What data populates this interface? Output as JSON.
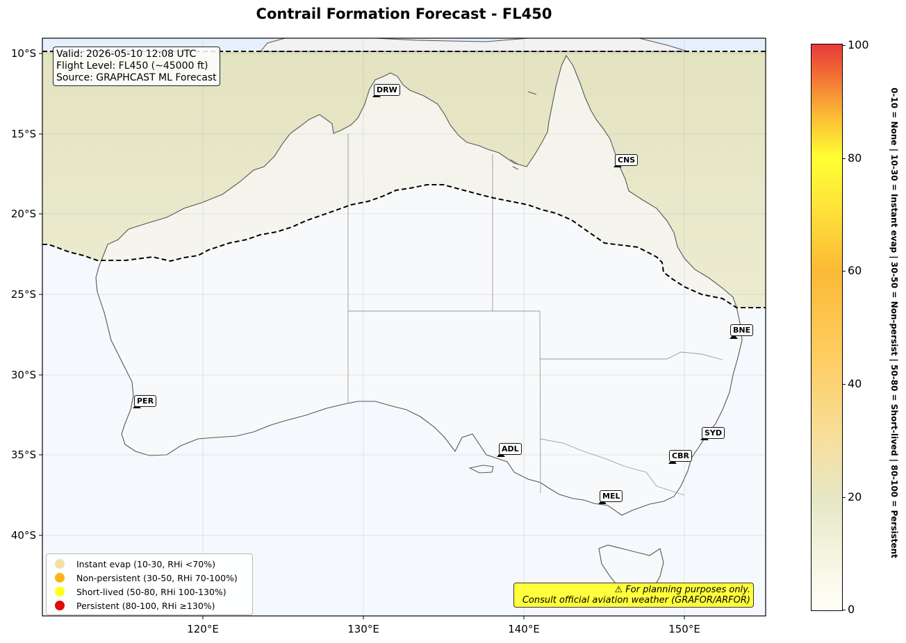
{
  "title": "Contrail Formation Forecast - FL450",
  "info": {
    "valid": "Valid: 2026-05-10 12:08 UTC",
    "flight_level": "Flight Level: FL450 (~45000 ft)",
    "source": "Source: GRAPHCAST ML Forecast"
  },
  "lat_ticks": [
    "10°S",
    "15°S",
    "20°S",
    "25°S",
    "30°S",
    "35°S",
    "40°S"
  ],
  "lon_ticks": [
    "120°E",
    "130°E",
    "140°E",
    "150°E"
  ],
  "cities": [
    {
      "code": "DRW",
      "lon": 130.8,
      "lat": -12.5
    },
    {
      "code": "CNS",
      "lon": 145.8,
      "lat": -16.9
    },
    {
      "code": "BNE",
      "lon": 153.0,
      "lat": -27.5
    },
    {
      "code": "PER",
      "lon": 115.9,
      "lat": -31.9
    },
    {
      "code": "ADL",
      "lon": 138.6,
      "lat": -34.9
    },
    {
      "code": "SYD",
      "lon": 151.2,
      "lat": -33.9
    },
    {
      "code": "CBR",
      "lon": 149.1,
      "lat": -35.3
    },
    {
      "code": "MEL",
      "lon": 144.9,
      "lat": -37.8
    }
  ],
  "legend": [
    {
      "label": "Instant evap (10-30, RHi <70%)",
      "color": "#f0e2a0"
    },
    {
      "label": "Non-persistent (30-50, RHi 70-100%)",
      "color": "#fbb41c"
    },
    {
      "label": "Short-lived (50-80, RHi 100-130%)",
      "color": "#ffff17"
    },
    {
      "label": "Persistent (80-100, RHi ≥130%)",
      "color": "#e30a0a"
    }
  ],
  "disclaimer": {
    "line1": "⚠ For planning purposes only.",
    "line2": "Consult official aviation weather (GRAFOR/ARFOR)"
  },
  "colorbar": {
    "ticks": [
      "0",
      "20",
      "40",
      "60",
      "80",
      "100"
    ],
    "label": "0-10 = None  |  10-30 = Instant evap  |  30-50 = Non-persist  |  50-80 = Short-lived  |  80-100 = Persistent"
  },
  "colors": {
    "background_sea": "#f4f8fc",
    "forecast_zone": "#e6e6c4",
    "land": "#f8f8f8",
    "disclaimer_bg": "#ffff3c"
  }
}
